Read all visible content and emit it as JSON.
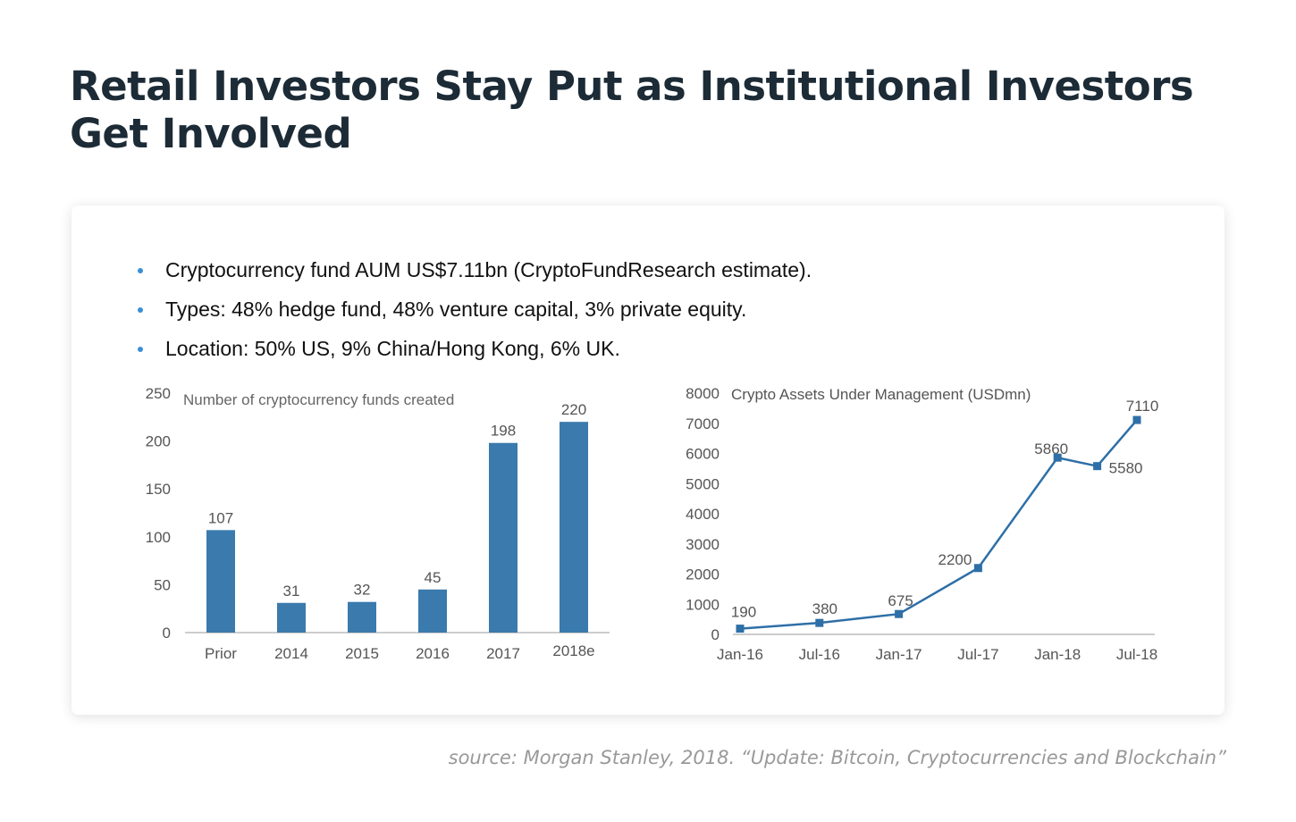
{
  "title": "Retail Investors Stay Put as Institutional Investors Get Involved",
  "bullets": [
    "Cryptocurrency fund AUM US$7.11bn (CryptoFundResearch estimate).",
    "Types: 48% hedge fund, 48% venture capital, 3% private equity.",
    "Location: 50% US, 9% China/Hong Kong, 6% UK."
  ],
  "source": "source: Morgan Stanley, 2018. “Update: Bitcoin, Cryptocurrencies and Blockchain”",
  "colors": {
    "bar": "#3a7aad",
    "line": "#2e6fa7",
    "bullet": "#3a8fd6",
    "title": "#1c2b36"
  },
  "chart_data": [
    {
      "type": "bar",
      "title": "Number of cryptocurrency funds created",
      "categories": [
        "Prior",
        "2014",
        "2015",
        "2016",
        "2017",
        "2018e"
      ],
      "values": [
        107,
        31,
        32,
        45,
        198,
        220
      ],
      "ylim": [
        0,
        250
      ],
      "yticks": [
        "0",
        "50",
        "100",
        "150",
        "200",
        "250"
      ],
      "grid": false,
      "data_labels": true
    },
    {
      "type": "line",
      "title": "Crypto Assets Under Management (USDmn)",
      "x": [
        "2016-01",
        "2016-07",
        "2017-01",
        "2017-07",
        "2018-01",
        "2018-04",
        "2018-07"
      ],
      "values": [
        190,
        380,
        675,
        2200,
        5860,
        5580,
        7110
      ],
      "xticks": [
        "Jan-16",
        "Jul-16",
        "Jan-17",
        "Jul-17",
        "Jan-18",
        "Jul-18"
      ],
      "ylim": [
        0,
        8000
      ],
      "yticks": [
        "0",
        "1000",
        "2000",
        "3000",
        "4000",
        "5000",
        "6000",
        "7000",
        "8000"
      ],
      "grid": false,
      "marker": "square",
      "data_labels": true
    }
  ]
}
